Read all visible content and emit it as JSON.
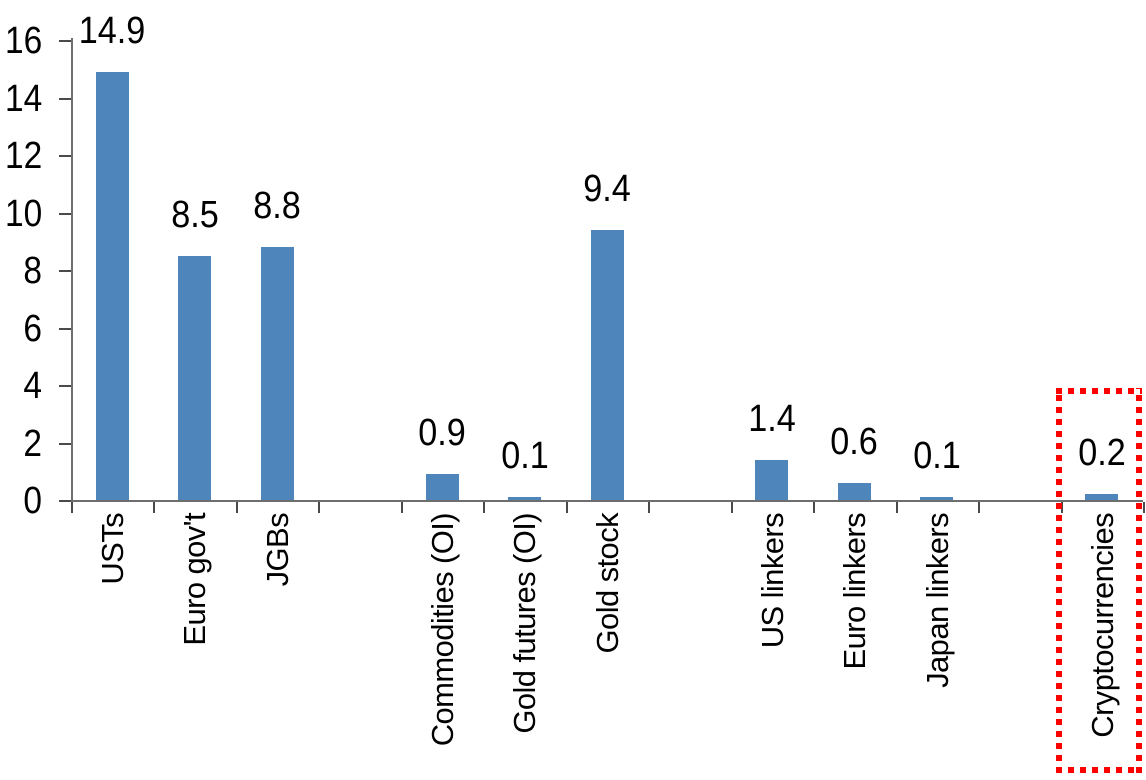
{
  "chart_data": {
    "type": "bar",
    "title": "",
    "xlabel": "",
    "ylabel": "",
    "ylim": [
      0,
      16
    ],
    "grid": false,
    "legend": null,
    "yticks": [
      0,
      2,
      4,
      6,
      8,
      10,
      12,
      14,
      16
    ],
    "ytick_labels": [
      "0",
      "2",
      "4",
      "6",
      "8",
      "10",
      "12",
      "14",
      "16"
    ],
    "categories": [
      "USTs",
      "Euro gov't",
      "JGBs",
      "Commodities (OI)",
      "Gold futures (OI)",
      "Gold stock",
      "US linkers",
      "Euro linkers",
      "Japan linkers",
      "Cryptocurrencies"
    ],
    "values": [
      14.9,
      8.5,
      8.8,
      0.9,
      0.1,
      9.4,
      1.4,
      0.6,
      0.1,
      0.2
    ],
    "slots": [
      {
        "label": "USTs",
        "value": 14.9,
        "value_label": "14.9",
        "highlighted": false
      },
      {
        "label": "Euro gov't",
        "value": 8.5,
        "value_label": "8.5",
        "highlighted": false
      },
      {
        "label": "JGBs",
        "value": 8.8,
        "value_label": "8.8",
        "highlighted": false
      },
      null,
      {
        "label": "Commodities (OI)",
        "value": 0.9,
        "value_label": "0.9",
        "highlighted": false
      },
      {
        "label": "Gold futures (OI)",
        "value": 0.1,
        "value_label": "0.1",
        "highlighted": false
      },
      {
        "label": "Gold stock",
        "value": 9.4,
        "value_label": "9.4",
        "highlighted": false
      },
      null,
      {
        "label": "US linkers",
        "value": 1.4,
        "value_label": "1.4",
        "highlighted": false
      },
      {
        "label": "Euro linkers",
        "value": 0.6,
        "value_label": "0.6",
        "highlighted": false
      },
      {
        "label": "Japan linkers",
        "value": 0.1,
        "value_label": "0.1",
        "highlighted": false
      },
      null,
      {
        "label": "Cryptocurrencies",
        "value": 0.2,
        "value_label": "0.2",
        "highlighted": true
      }
    ],
    "colors": {
      "bar": "#4e86bc",
      "axis_line": "#6e6e6e",
      "tick_mark": "#4a4a4a",
      "text": "#000000",
      "highlight_box": "#ff0000"
    },
    "highlight": {
      "category": "Cryptocurrencies",
      "style": "red-dotted-box"
    }
  }
}
